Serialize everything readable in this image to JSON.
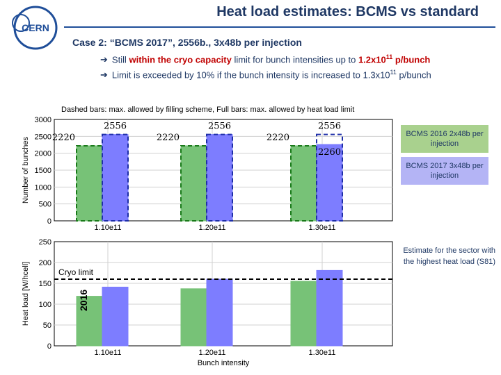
{
  "header": {
    "title": "Heat load estimates: BCMS vs standard",
    "logo_text": "CERN"
  },
  "content": {
    "case_line": "Case 2: “BCMS 2017”, 2556b., 3x48b per injection",
    "bullet1_pre": "Still ",
    "bullet1_red1": "within the cryo capacity",
    "bullet1_mid": " limit for bunch intensities up to ",
    "bullet1_red2": "1.2x10",
    "bullet1_sup": "11",
    "bullet1_red3": " p/bunch",
    "bullet2_pre": "Limit is exceeded by 10% if the bunch intensity is increased to 1.3x10",
    "bullet2_sup": "11",
    "bullet2_post": " p/bunch",
    "chart_caption": "Dashed bars: max. allowed by filling scheme, Full bars: max. allowed by heat load limit"
  },
  "legend": {
    "bcms2016": "BCMS 2016 2x48b per injection",
    "bcms2017": "BCMS 2017 3x48b per injection"
  },
  "annotations": {
    "sector_note": "Estimate for the sector with the highest heat load (S81)",
    "cryo_limit": "Cryo limit",
    "year_label": "2016"
  },
  "colors": {
    "green": "#77c277",
    "blue": "#7d7dff",
    "title": "#1f3864",
    "red": "#c00000"
  },
  "chart_data": [
    {
      "type": "bar",
      "name": "bunches",
      "title": "Dashed bars: max. allowed by filling scheme, Full bars: max. allowed by heat load limit",
      "xlabel": "",
      "ylabel": "Number of bunches",
      "categories": [
        "1.10e11",
        "1.20e11",
        "1.30e11"
      ],
      "ylim": [
        0,
        3000
      ],
      "yticks": [
        0,
        500,
        1000,
        1500,
        2000,
        2500,
        3000
      ],
      "series": [
        {
          "name": "BCMS 2016 2x48b per injection",
          "color": "green",
          "values": [
            2220,
            2220,
            2220
          ],
          "max_allowed_dashed": [
            2220,
            2220,
            2220
          ]
        },
        {
          "name": "BCMS 2017 3x48b per injection",
          "color": "blue",
          "values": [
            2556,
            2556,
            2260
          ],
          "max_allowed_dashed": [
            2556,
            2556,
            2556
          ]
        }
      ],
      "labels": [
        {
          "category": "1.10e11",
          "green": "2220",
          "blue": "2556"
        },
        {
          "category": "1.20e11",
          "green": "2220",
          "blue": "2556"
        },
        {
          "category": "1.30e11",
          "green": "2220",
          "blue": "2556",
          "blue_actual": "2260"
        }
      ]
    },
    {
      "type": "bar",
      "name": "heat_load",
      "xlabel": "Bunch intensity",
      "ylabel": "Heat load [W/hcell]",
      "categories": [
        "1.10e11",
        "1.20e11",
        "1.30e11"
      ],
      "ylim": [
        0,
        250
      ],
      "yticks": [
        0,
        50,
        100,
        150,
        200,
        250
      ],
      "series": [
        {
          "name": "BCMS 2016 2x48b per injection",
          "color": "green",
          "values": [
            119,
            137,
            155
          ]
        },
        {
          "name": "BCMS 2017 3x48b per injection",
          "color": "blue",
          "values": [
            141,
            160,
            181
          ]
        }
      ],
      "cryo_limit": 160
    }
  ]
}
